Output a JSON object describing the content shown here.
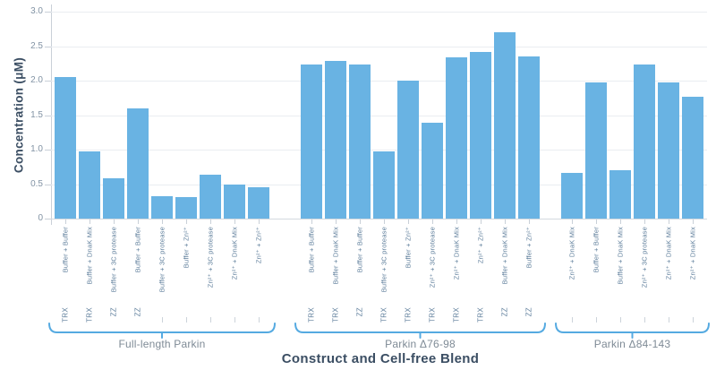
{
  "y_axis": {
    "title": "Concentration (μM)",
    "tick_labels": [
      "3.0",
      "2.5",
      "2.0",
      "1.5",
      "1.0",
      "0.5",
      "0"
    ],
    "tick_values": [
      3.0,
      2.5,
      2.0,
      1.5,
      1.0,
      0.5,
      0
    ]
  },
  "x_axis": {
    "title": "Construct and Cell-free Blend"
  },
  "colors": {
    "bar": "#69b3e3",
    "bracket": "#55aae1",
    "axis_title_text": "#3b4e63",
    "tick_label_text": "#8293a4",
    "category_label_text": "#5e7e9b",
    "group_label_text": "#7f8b96",
    "gridline": "#eaedf1"
  },
  "chart_data": {
    "type": "bar",
    "title": "",
    "xlabel": "Construct and Cell-free Blend",
    "ylabel": "Concentration (μM)",
    "ylim": [
      0,
      3.0
    ],
    "grid": true,
    "legend": false,
    "bar_color": "#69b3e3",
    "groups": [
      {
        "name": "Full-length Parkin",
        "bars": [
          {
            "label": "Buffer + Buffer",
            "blend": "TRX",
            "value": 2.05
          },
          {
            "label": "Buffer + DnaK Mix",
            "blend": "TRX",
            "value": 0.98
          },
          {
            "label": "Buffer + 3C protease",
            "blend": "ZZ",
            "value": 0.58
          },
          {
            "label": "Buffer + Buffer",
            "blend": "ZZ",
            "value": 1.6
          },
          {
            "label": "Buffer + 3C protease",
            "blend": "",
            "value": 0.33
          },
          {
            "label": "Buffer + Zn²⁺",
            "blend": "",
            "value": 0.31
          },
          {
            "label": "Zn²⁺ + 3C protease",
            "blend": "",
            "value": 0.64
          },
          {
            "label": "Zn²⁺ + DnaK Mix",
            "blend": "",
            "value": 0.5
          },
          {
            "label": "Zn²⁺ + Zn²⁺",
            "blend": "",
            "value": 0.45
          }
        ]
      },
      {
        "name": "Parkin Δ76-98",
        "bars": [
          {
            "label": "Buffer + Buffer",
            "blend": "TRX",
            "value": 2.24
          },
          {
            "label": "Buffer + DnaK Mix",
            "blend": "TRX",
            "value": 2.29
          },
          {
            "label": "Buffer + Buffer",
            "blend": "ZZ",
            "value": 2.24
          },
          {
            "label": "Buffer + 3C protease",
            "blend": "TRX",
            "value": 0.98
          },
          {
            "label": "Buffer + Zn²⁺",
            "blend": "TRX",
            "value": 2.0
          },
          {
            "label": "Zn²⁺ + 3C protease",
            "blend": "TRX",
            "value": 1.39
          },
          {
            "label": "Zn²⁺ + DnaK Mix",
            "blend": "TRX",
            "value": 2.34
          },
          {
            "label": "Zn²⁺ + Zn²⁺",
            "blend": "TRX",
            "value": 2.41
          },
          {
            "label": "Buffer + DnaK Mix",
            "blend": "ZZ",
            "value": 2.7
          },
          {
            "label": "Buffer + Zn²⁺",
            "blend": "ZZ",
            "value": 2.35
          }
        ]
      },
      {
        "name": "Parkin Δ84-143",
        "bars": [
          {
            "label": "Zn²⁺ + DnaK Mix",
            "blend": "",
            "value": 0.66
          },
          {
            "label": "Buffer + Buffer",
            "blend": "",
            "value": 1.97
          },
          {
            "label": "Buffer + DnaK Mix",
            "blend": "",
            "value": 0.7
          },
          {
            "label": "Zn²⁺ + 3C protease",
            "blend": "",
            "value": 2.23
          },
          {
            "label": "Zn²⁺ + DnaK Mix",
            "blend": "",
            "value": 1.97
          },
          {
            "label": "Zn²⁺ + DnaK Mix",
            "blend": "",
            "value": 1.77
          }
        ]
      }
    ]
  }
}
